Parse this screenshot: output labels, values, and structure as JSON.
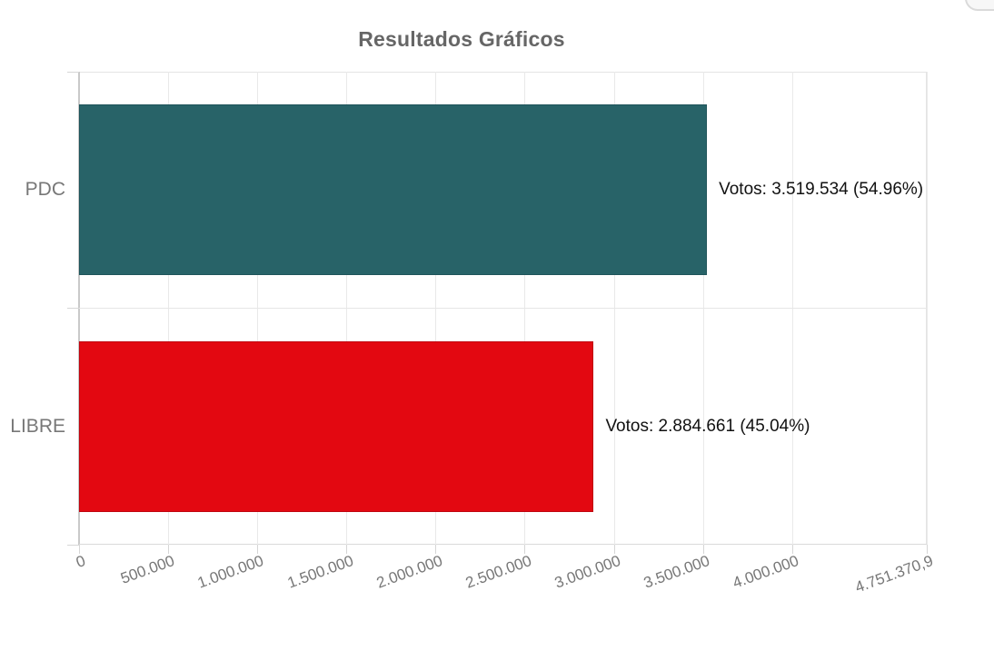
{
  "title": "Resultados Gráficos",
  "colors": {
    "background": "#ffffff",
    "title_text": "#666666",
    "axis_text": "#777777",
    "data_label_text": "#111111",
    "grid": "#e9e9e9",
    "axis_line": "#c9c9c9",
    "bar_pdc": "#286368",
    "bar_pdc_border": "#1f545a",
    "bar_libre": "#e30811",
    "bar_libre_border": "#bf050f"
  },
  "chart_data": {
    "type": "bar",
    "orientation": "horizontal",
    "title": "Resultados Gráficos",
    "xlabel": "",
    "ylabel": "",
    "grid": true,
    "legend_position": "none",
    "xlim": [
      0,
      4751370.9
    ],
    "categories": [
      "PDC",
      "LIBRE"
    ],
    "series": [
      {
        "name": "Votos",
        "values": [
          3519534,
          2884661
        ],
        "percentages": [
          54.96,
          45.04
        ]
      }
    ],
    "data_labels": [
      "Votos: 3.519.534 (54.96%)",
      "Votos: 2.884.661 (45.04%)"
    ],
    "bar_colors": [
      "#286368",
      "#e30811"
    ],
    "bar_border_colors": [
      "#1f545a",
      "#bf050f"
    ],
    "x_ticks": {
      "values": [
        0,
        500000,
        1000000,
        1500000,
        2000000,
        2500000,
        3000000,
        3500000,
        4000000,
        4751370.9
      ],
      "labels": [
        "0",
        "500.000",
        "1.000.000",
        "1.500.000",
        "2.000.000",
        "2.500.000",
        "3.000.000",
        "3.500.000",
        "4.000.000",
        "4.751.370,9"
      ],
      "rotation_deg": -20
    }
  }
}
